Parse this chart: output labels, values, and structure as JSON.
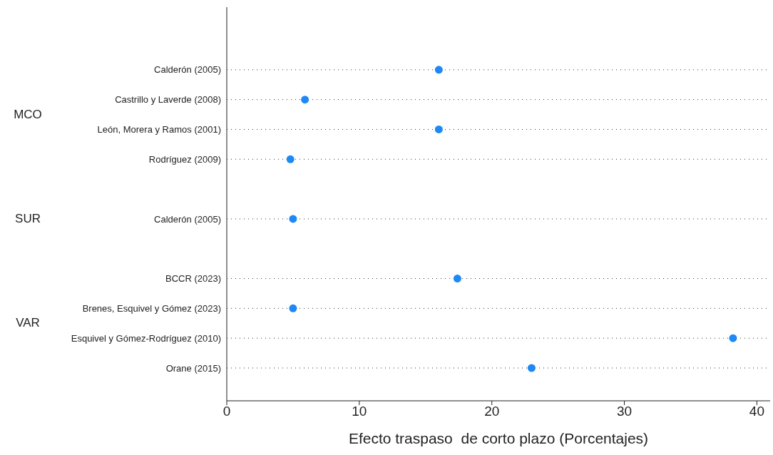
{
  "chart_data": {
    "type": "scatter",
    "xlabel": "Efecto traspaso  de corto plazo (Porcentajes)",
    "categories": [
      "Calderón (2005)",
      "Castrillo y Laverde (2008)",
      "León, Morera y Ramos (2001)",
      "Rodríguez (2009)",
      null,
      "Calderón (2005)",
      null,
      "BCCR (2023)",
      "Brenes, Esquivel y Gómez (2023)",
      "Esquivel y Gómez-Rodríguez (2010)",
      "Orane (2015)"
    ],
    "values": [
      16.0,
      5.9,
      16.0,
      4.8,
      null,
      5.0,
      null,
      17.4,
      5.0,
      38.2,
      23.0
    ],
    "color": "#1e88f5",
    "marker": "circle",
    "orientation": "horizontal",
    "xlim": [
      0,
      41
    ],
    "xticks": [
      0,
      10,
      20,
      30,
      40
    ],
    "grid": "y",
    "line_style": "dotted",
    "annotations": [
      "MCO",
      "SUR",
      "VAR"
    ]
  }
}
